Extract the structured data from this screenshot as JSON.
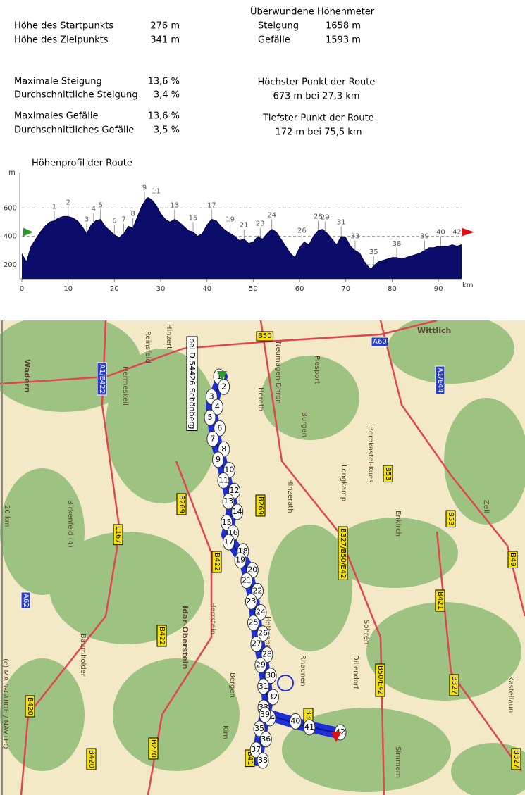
{
  "stats": {
    "left": [
      {
        "label": "Höhe des Startpunkts",
        "value": "276 m"
      },
      {
        "label": "Höhe des Zielpunkts",
        "value": "341 m"
      },
      {
        "label": "Maximale Steigung",
        "value": "13,6 %"
      },
      {
        "label": "Durchschnittliche Steigung",
        "value": "3,4 %"
      },
      {
        "label": "Maximales Gefälle",
        "value": "13,6 %"
      },
      {
        "label": "Durchschnittliches Gefälle",
        "value": "3,5 %"
      }
    ],
    "climb_title": "Überwundene Höhenmeter",
    "climb": [
      {
        "label": "Steigung",
        "value": "1658 m"
      },
      {
        "label": "Gefälle",
        "value": "1593 m"
      }
    ],
    "highest_title": "Höchster Punkt der Route",
    "highest": "673 m bei 27,3 km",
    "lowest_title": "Tiefster Punkt der Route",
    "lowest": "172 m bei 75,5 km"
  },
  "chart_data": {
    "type": "area",
    "title": "Höhenprofil der Route",
    "y_unit": "m",
    "x_unit": "km",
    "color": "#0c0c6a",
    "x": [
      0,
      1,
      2,
      3,
      4,
      5,
      6,
      7,
      8,
      9,
      10,
      11,
      12,
      13,
      14,
      15,
      16,
      17,
      18,
      19,
      20,
      21,
      22,
      23,
      24,
      25,
      26,
      27,
      27.3,
      28,
      29,
      30,
      31,
      32,
      33,
      34,
      35,
      36,
      37,
      38,
      39,
      40,
      41,
      42,
      43,
      44,
      45,
      46,
      47,
      48,
      49,
      50,
      51,
      52,
      53,
      54,
      55,
      56,
      57,
      58,
      59,
      60,
      61,
      62,
      63,
      64,
      65,
      66,
      67,
      68,
      69,
      70,
      71,
      72,
      73,
      74,
      75,
      75.5,
      76,
      77,
      78,
      79,
      80,
      81,
      82,
      83,
      84,
      85,
      86,
      87,
      88,
      89,
      90,
      91,
      92,
      93,
      94,
      95
    ],
    "values": [
      276,
      220,
      330,
      380,
      430,
      470,
      500,
      510,
      530,
      540,
      540,
      530,
      510,
      470,
      420,
      480,
      510,
      520,
      470,
      440,
      410,
      390,
      420,
      470,
      460,
      540,
      620,
      670,
      673,
      660,
      620,
      560,
      520,
      500,
      520,
      500,
      470,
      440,
      430,
      400,
      420,
      480,
      520,
      510,
      470,
      440,
      420,
      400,
      370,
      380,
      350,
      360,
      400,
      380,
      420,
      450,
      430,
      380,
      330,
      280,
      250,
      320,
      360,
      340,
      400,
      440,
      450,
      420,
      380,
      340,
      400,
      390,
      330,
      300,
      280,
      220,
      180,
      172,
      190,
      220,
      230,
      240,
      250,
      250,
      240,
      250,
      260,
      270,
      280,
      300,
      320,
      320,
      330,
      330,
      330,
      340,
      330,
      341
    ],
    "xlim": [
      0,
      95
    ],
    "ylim": [
      100,
      850
    ],
    "xticks": [
      0,
      10,
      20,
      30,
      40,
      50,
      60,
      70,
      80,
      90
    ],
    "yticks": [
      200,
      400,
      600
    ],
    "grid": true,
    "waypoints": [
      {
        "label": "1",
        "x": 7
      },
      {
        "label": "2",
        "x": 10
      },
      {
        "label": "3",
        "x": 14
      },
      {
        "label": "4",
        "x": 15.5
      },
      {
        "label": "5",
        "x": 17
      },
      {
        "label": "6",
        "x": 20
      },
      {
        "label": "7",
        "x": 22
      },
      {
        "label": "8",
        "x": 24
      },
      {
        "label": "9",
        "x": 26.5
      },
      {
        "label": "11",
        "x": 29
      },
      {
        "label": "13",
        "x": 33
      },
      {
        "label": "15",
        "x": 37
      },
      {
        "label": "17",
        "x": 41
      },
      {
        "label": "19",
        "x": 45
      },
      {
        "label": "21",
        "x": 48
      },
      {
        "label": "23",
        "x": 51.5
      },
      {
        "label": "24",
        "x": 54
      },
      {
        "label": "26",
        "x": 60.5
      },
      {
        "label": "28",
        "x": 64
      },
      {
        "label": "29",
        "x": 65.5
      },
      {
        "label": "31",
        "x": 69
      },
      {
        "label": "33",
        "x": 72
      },
      {
        "label": "35",
        "x": 76
      },
      {
        "label": "38",
        "x": 81
      },
      {
        "label": "39",
        "x": 87
      },
      {
        "label": "40",
        "x": 90.5
      },
      {
        "label": "42",
        "x": 94
      }
    ]
  },
  "map": {
    "labels": [
      "Wittlich",
      "Wadern",
      "bei D 54426 Schönberg",
      "Idar-Oberstein",
      "B50",
      "A60",
      "A1/E422",
      "A1/E44",
      "B269",
      "B269",
      "B53",
      "B53",
      "B327/B50/E42",
      "L167",
      "B422",
      "B421",
      "B49",
      "B422",
      "B50/E42",
      "B327",
      "B420",
      "B420",
      "B270",
      "B327",
      "B41",
      "B39",
      "A62",
      "Hinzert",
      "Reinsfeld",
      "Hermeskeil",
      "Neumagen-Dhron",
      "Piesport",
      "Horath",
      "Burgen",
      "Longkamp",
      "Bernkastel-Kues",
      "Hinzerath",
      "Enkirch",
      "Zell",
      "Hottenbach",
      "Rhaunen",
      "Sohren",
      "Dillendorf",
      "Bergen",
      "Kirn",
      "Herrstein",
      "Baumholder",
      "Birkenfeld (4)",
      "Kastellaun",
      "Simmern",
      "20 km",
      "(c) MAP&GUIDE / NAVTEQ"
    ],
    "waypoints": [
      "1",
      "2",
      "3",
      "4",
      "5",
      "6",
      "7",
      "8",
      "9",
      "10",
      "11",
      "12",
      "13",
      "14",
      "15",
      "16",
      "17",
      "18",
      "19",
      "20",
      "21",
      "22",
      "23",
      "24",
      "25",
      "26",
      "27",
      "28",
      "29",
      "30",
      "31",
      "32",
      "33",
      "34",
      "35",
      "36",
      "37",
      "38",
      "39",
      "40",
      "41",
      "42"
    ]
  }
}
